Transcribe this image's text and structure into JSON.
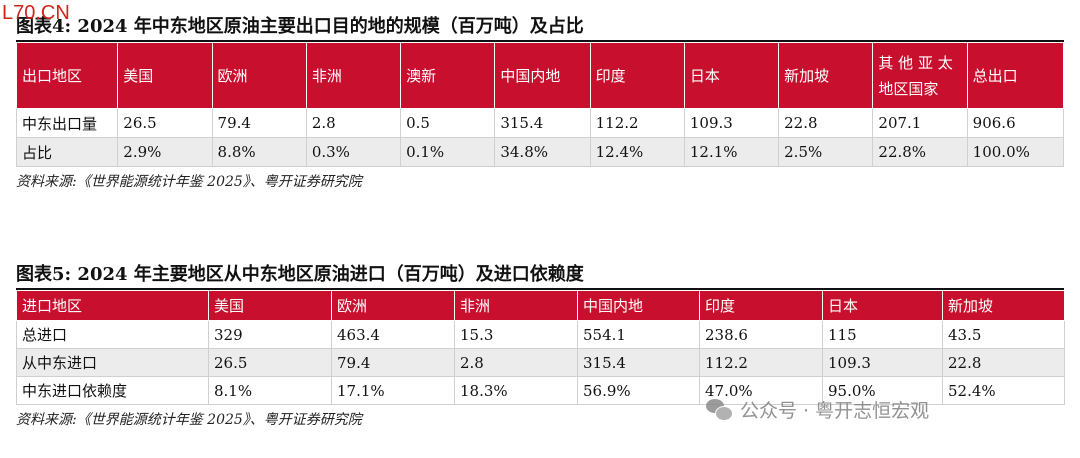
{
  "logo_text": "L70.CN",
  "table4": {
    "title": "图表4:  2024 年中东地区原油主要出口目的地的规模（百万吨）及占比",
    "header": [
      "出口地区",
      "美国",
      "欧洲",
      "非洲",
      "澳新",
      "中国内地",
      "印度",
      "日本",
      "新加坡",
      "其他亚太地区国家",
      "总出口"
    ],
    "header_last_top": "其 他 亚 太",
    "header_last_bottom": "地区国家",
    "rows": [
      [
        "中东出口量",
        "26.5",
        "79.4",
        "2.8",
        "0.5",
        "315.4",
        "112.2",
        "109.3",
        "22.8",
        "207.1",
        "906.6"
      ],
      [
        "占比",
        "2.9%",
        "8.8%",
        "0.3%",
        "0.1%",
        "34.8%",
        "12.4%",
        "12.1%",
        "2.5%",
        "22.8%",
        "100.0%"
      ]
    ],
    "source": "资料来源:《世界能源统计年鉴 2025》、粤开证券研究院"
  },
  "table5": {
    "title": "图表5:  2024 年主要地区从中东地区原油进口（百万吨）及进口依赖度",
    "header": [
      "进口地区",
      "美国",
      "欧洲",
      "非洲",
      "中国内地",
      "印度",
      "日本",
      "新加坡"
    ],
    "rows": [
      [
        "总进口",
        "329",
        "463.4",
        "15.3",
        "554.1",
        "238.6",
        "115",
        "43.5"
      ],
      [
        "从中东进口",
        "26.5",
        "79.4",
        "2.8",
        "315.4",
        "112.2",
        "109.3",
        "22.8"
      ],
      [
        "中东进口依赖度",
        "8.1%",
        "17.1%",
        "18.3%",
        "56.9%",
        "47.0%",
        "95.0%",
        "52.4%"
      ]
    ],
    "source": "资料来源:《世界能源统计年鉴 2025》、粤开证券研究院"
  },
  "watermark": "公众号 · 粤开志恒宏观",
  "colors": {
    "header_bg": "#c8102e",
    "alt_row_bg": "#ececec"
  }
}
